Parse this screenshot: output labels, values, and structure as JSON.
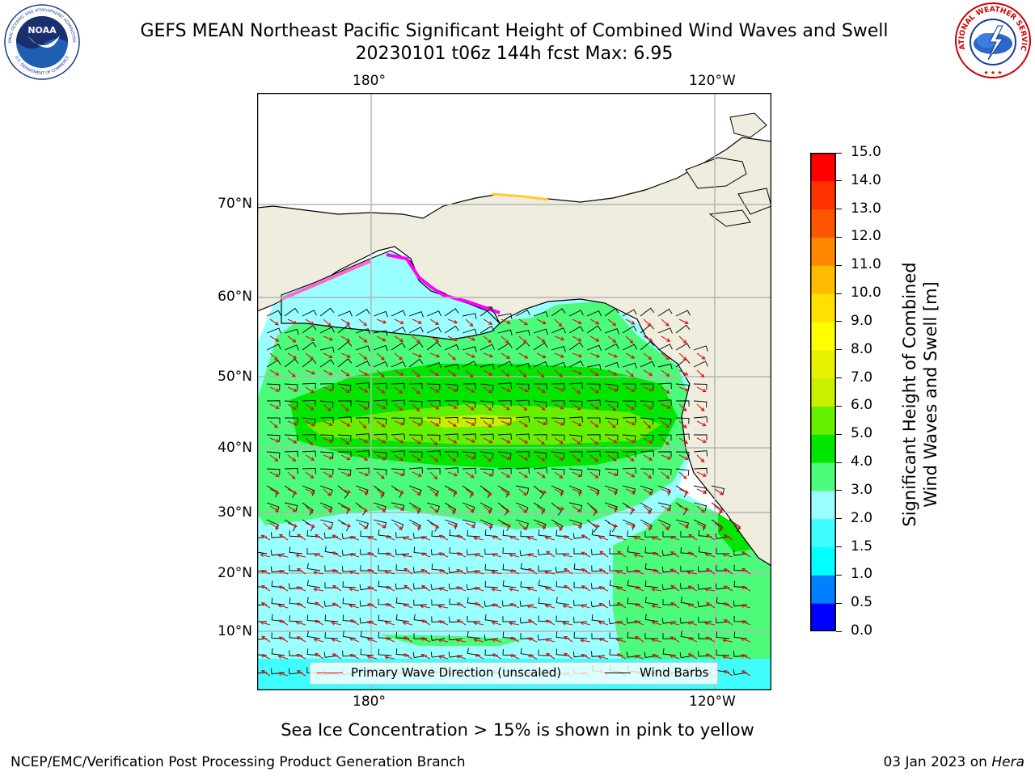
{
  "title": {
    "line1": "GEFS MEAN Northeast Pacific Significant Height of Combined Wind Waves and Swell",
    "line2": "20230101 t06z 144h fcst   Max: 6.95"
  },
  "map": {
    "lon_labels_top": [
      "180°",
      "120°W"
    ],
    "lon_labels_bottom": [
      "180°",
      "120°W"
    ],
    "lat_labels": [
      "70°N",
      "60°N",
      "50°N",
      "40°N",
      "30°N",
      "20°N",
      "10°N"
    ],
    "colors": {
      "land": "#efedde",
      "coast": "#000000",
      "grid": "#b4b4b4",
      "wind_barb": "#000000",
      "wave_arrow": "#e01010",
      "sea_ice": [
        "#ff00ff",
        "#ff66cc",
        "#ff9966",
        "#ffcc33"
      ]
    }
  },
  "legend": {
    "wave_label": "Primary Wave Direction (unscaled)",
    "barb_label": "Wind Barbs"
  },
  "colorbar": {
    "label_line1": "Significant Height of Combined",
    "label_line2": "Wind Waves and Swell [m]",
    "ticks": [
      "15.0",
      "14.0",
      "13.0",
      "12.0",
      "11.0",
      "10.0",
      "9.0",
      "8.0",
      "7.0",
      "6.0",
      "5.0",
      "4.0",
      "3.0",
      "2.0",
      "1.5",
      "1.0",
      "0.5",
      "0.0"
    ],
    "colors_bottom_to_top": [
      "#0000ff",
      "#0080ff",
      "#00ffff",
      "#3ffdfd",
      "#99ffff",
      "#4dfb7a",
      "#00e600",
      "#66f000",
      "#c8f000",
      "#e6f000",
      "#ffff00",
      "#ffe000",
      "#ffbb00",
      "#ff8800",
      "#ff5500",
      "#ff3300",
      "#ff0000"
    ]
  },
  "note": "Sea Ice Concentration > 15% is shown in pink to yellow",
  "footer": {
    "left": "NCEP/EMC/Verification Post Processing Product Generation Branch",
    "right_date": "03 Jan 2023 on ",
    "right_host": "Hera"
  },
  "logos": {
    "noaa_text": "NOAA",
    "noaa_ring_top": "NATIONAL OCEANIC AND ATMOSPHERIC ADMINISTRATION",
    "noaa_ring_bottom": "U.S. DEPARTMENT OF COMMERCE",
    "nws_ring": "NATIONAL WEATHER SERVICE"
  }
}
